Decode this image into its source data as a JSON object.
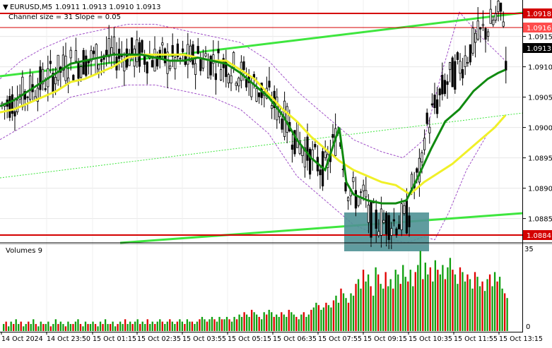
{
  "header": {
    "symbol": "EURUSD,M5",
    "ohlc": "1.0911 1.0913 1.0910 1.0913",
    "channel_info": "Channel size = 31 Slope = 0.05"
  },
  "volume_panel": {
    "title": "Volumes 9",
    "axis_max": "35",
    "axis_min": "0"
  },
  "price_axis": {
    "ticks": [
      "1.0915",
      "1.0910",
      "1.0905",
      "1.0900",
      "1.0895",
      "1.0890",
      "1.0885"
    ],
    "labels": {
      "resistance": "1.0918",
      "upper": "1.0916",
      "current": "1.0913",
      "support": "1.0884"
    }
  },
  "time_axis": {
    "ticks": [
      "14 Oct 2024",
      "14 Oct 23:50",
      "15 Oct 01:15",
      "15 Oct 02:35",
      "15 Oct 03:55",
      "15 Oct 05:15",
      "15 Oct 06:35",
      "15 Oct 07:55",
      "15 Oct 09:15",
      "15 Oct 10:35",
      "15 Oct 11:55",
      "15 Oct 13:15"
    ]
  },
  "colors": {
    "background": "#ffffff",
    "level_line": "#d40000",
    "channel_line": "#3ee63e",
    "ma_fast": "#108a10",
    "ma_slow": "#f0f028",
    "envelope": "#a050c8",
    "zone": "#4f9195",
    "volume_up": "#10a010",
    "volume_down": "#e00000",
    "current_label": "#000000"
  },
  "chart_data": {
    "type": "candlestick",
    "symbol": "EURUSD",
    "timeframe": "M5",
    "y_range": [
      1.0881,
      1.0921
    ],
    "levels": [
      1.0918,
      1.0916,
      1.0884
    ],
    "current_price": 1.0913,
    "ma_fast_path": [
      [
        0,
        1.09035
      ],
      [
        20,
        1.09045
      ],
      [
        40,
        1.0906
      ],
      [
        60,
        1.09075
      ],
      [
        80,
        1.0909
      ],
      [
        100,
        1.09105
      ],
      [
        120,
        1.0911
      ],
      [
        140,
        1.09115
      ],
      [
        160,
        1.0912
      ],
      [
        180,
        1.0912
      ],
      [
        200,
        1.0912
      ],
      [
        220,
        1.09115
      ],
      [
        240,
        1.0911
      ],
      [
        260,
        1.0911
      ],
      [
        280,
        1.09115
      ],
      [
        300,
        1.0911
      ],
      [
        320,
        1.09105
      ],
      [
        340,
        1.0909
      ],
      [
        360,
        1.0907
      ],
      [
        380,
        1.0905
      ],
      [
        400,
        1.0902
      ],
      [
        420,
        1.0898
      ],
      [
        440,
        1.0895
      ],
      [
        460,
        1.0893
      ],
      [
        480,
        1.09
      ],
      [
        490,
        1.0891
      ],
      [
        500,
        1.0889
      ],
      [
        520,
        1.0888
      ],
      [
        540,
        1.08875
      ],
      [
        560,
        1.08875
      ],
      [
        575,
        1.0888
      ],
      [
        590,
        1.08915
      ],
      [
        610,
        1.08965
      ],
      [
        630,
        1.0901
      ],
      [
        650,
        1.0903
      ],
      [
        670,
        1.0906
      ],
      [
        690,
        1.0908
      ],
      [
        705,
        1.0909
      ],
      [
        715,
        1.09095
      ]
    ],
    "ma_slow_path": [
      [
        0,
        1.09025
      ],
      [
        20,
        1.0903
      ],
      [
        40,
        1.0904
      ],
      [
        60,
        1.0905
      ],
      [
        80,
        1.0906
      ],
      [
        100,
        1.09075
      ],
      [
        120,
        1.0908
      ],
      [
        140,
        1.0909
      ],
      [
        160,
        1.091
      ],
      [
        180,
        1.09115
      ],
      [
        200,
        1.0912
      ],
      [
        220,
        1.0912
      ],
      [
        240,
        1.0912
      ],
      [
        260,
        1.0912
      ],
      [
        280,
        1.09115
      ],
      [
        300,
        1.0911
      ],
      [
        320,
        1.0911
      ],
      [
        340,
        1.09095
      ],
      [
        360,
        1.0908
      ],
      [
        380,
        1.09055
      ],
      [
        400,
        1.0903
      ],
      [
        420,
        1.0901
      ],
      [
        440,
        1.08985
      ],
      [
        460,
        1.08965
      ],
      [
        480,
        1.08945
      ],
      [
        500,
        1.0893
      ],
      [
        520,
        1.0892
      ],
      [
        540,
        1.0891
      ],
      [
        560,
        1.08905
      ],
      [
        580,
        1.0889
      ],
      [
        600,
        1.0891
      ],
      [
        620,
        1.08925
      ],
      [
        640,
        1.0894
      ],
      [
        660,
        1.0896
      ],
      [
        680,
        1.0898
      ],
      [
        700,
        1.09
      ],
      [
        715,
        1.0902
      ]
    ],
    "envelope_upper_path": [
      [
        0,
        1.0908
      ],
      [
        30,
        1.0911
      ],
      [
        60,
        1.0913
      ],
      [
        100,
        1.0915
      ],
      [
        140,
        1.0916
      ],
      [
        180,
        1.0917
      ],
      [
        220,
        1.0917
      ],
      [
        260,
        1.0916
      ],
      [
        300,
        1.0915
      ],
      [
        340,
        1.0914
      ],
      [
        380,
        1.0911
      ],
      [
        420,
        1.0906
      ],
      [
        460,
        1.0902
      ],
      [
        500,
        1.0898
      ],
      [
        540,
        1.0896
      ],
      [
        570,
        1.0895
      ],
      [
        600,
        1.0898
      ],
      [
        625,
        1.0909
      ],
      [
        650,
        1.0919
      ],
      [
        680,
        1.0915
      ],
      [
        715,
        1.0911
      ]
    ],
    "envelope_lower_path": [
      [
        0,
        1.0898
      ],
      [
        30,
        1.09
      ],
      [
        60,
        1.0902
      ],
      [
        100,
        1.0905
      ],
      [
        140,
        1.0906
      ],
      [
        180,
        1.0907
      ],
      [
        220,
        1.0907
      ],
      [
        260,
        1.0906
      ],
      [
        300,
        1.0905
      ],
      [
        340,
        1.0903
      ],
      [
        380,
        1.0899
      ],
      [
        420,
        1.0892
      ],
      [
        460,
        1.0888
      ],
      [
        500,
        1.0884
      ],
      [
        540,
        1.0882
      ],
      [
        575,
        1.0881
      ],
      [
        600,
        1.0882
      ],
      [
        615,
        1.08815
      ],
      [
        635,
        1.0886
      ],
      [
        660,
        1.0893
      ],
      [
        690,
        1.0899
      ],
      [
        715,
        1.0902
      ]
    ],
    "volumes_max": 35,
    "volumes": [
      3,
      4,
      2,
      4,
      3,
      5,
      3,
      4,
      2,
      3,
      4,
      3,
      5,
      3,
      2,
      4,
      3,
      3,
      4,
      2,
      3,
      5,
      3,
      4,
      3,
      2,
      4,
      3,
      3,
      4,
      5,
      3,
      2,
      4,
      3,
      3,
      4,
      3,
      2,
      4,
      3,
      5,
      3,
      3,
      4,
      2,
      3,
      4,
      3,
      5,
      3,
      4,
      3,
      4,
      5,
      3,
      4,
      3,
      5,
      3,
      4,
      3,
      4,
      5,
      4,
      3,
      4,
      5,
      4,
      3,
      4,
      5,
      4,
      3,
      5,
      4,
      4,
      3,
      4,
      5,
      6,
      5,
      4,
      5,
      6,
      5,
      4,
      6,
      5,
      5,
      6,
      5,
      4,
      6,
      5,
      7,
      6,
      8,
      7,
      6,
      9,
      8,
      7,
      6,
      5,
      8,
      7,
      9,
      8,
      6,
      7,
      6,
      8,
      7,
      6,
      9,
      8,
      7,
      6,
      5,
      7,
      8,
      6,
      7,
      9,
      10,
      12,
      11,
      9,
      10,
      12,
      11,
      10,
      13,
      15,
      12,
      18,
      16,
      14,
      12,
      16,
      15,
      20,
      22,
      18,
      26,
      21,
      24,
      19,
      15,
      27,
      24,
      20,
      18,
      25,
      19,
      22,
      18,
      26,
      24,
      20,
      28,
      23,
      21,
      26,
      19,
      25,
      28,
      34,
      22,
      29,
      24,
      27,
      21,
      30,
      26,
      24,
      28,
      22,
      27,
      31,
      26,
      24,
      20,
      27,
      25,
      21,
      24,
      22,
      18,
      25,
      23,
      19,
      21,
      17,
      22,
      24,
      19,
      25,
      21,
      23,
      18,
      16,
      14
    ]
  }
}
